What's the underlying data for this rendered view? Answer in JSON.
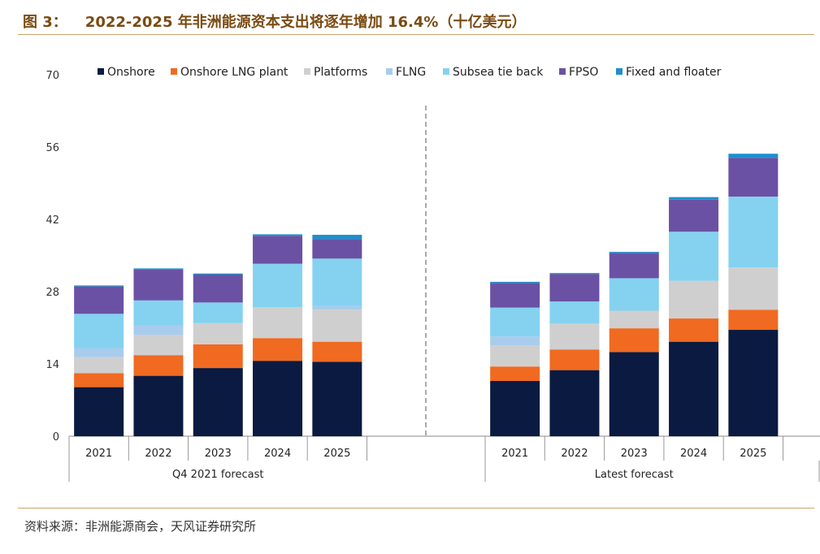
{
  "figure": {
    "label": "图 3：",
    "title": "2022-2025 年非洲能源资本支出将逐年增加 16.4%（十亿美元）",
    "source": "资料来源：非洲能源商会，天风证券研究所"
  },
  "colors": {
    "Onshore": "#0b1a40",
    "Onshore LNG plant": "#f06a21",
    "Platforms": "#cfcfcf",
    "FLNG": "#a9ccec",
    "Subsea tie back": "#84d2ef",
    "FPSO": "#6b51a3",
    "Fixed and floater": "#1c8fcd"
  },
  "chart_data": {
    "type": "bar",
    "stacked": true,
    "title": "",
    "xlabel": "",
    "ylabel": "",
    "ylim": [
      0,
      70
    ],
    "yticks": [
      0,
      14,
      28,
      42,
      56,
      70
    ],
    "legend_position": "top",
    "groups": [
      {
        "name": "Q4 2021 forecast",
        "categories": [
          "2021",
          "2022",
          "2023",
          "2024",
          "2025"
        ]
      },
      {
        "name": "Latest forecast",
        "categories": [
          "2021",
          "2022",
          "2023",
          "2024",
          "2025"
        ]
      }
    ],
    "categories": [
      "2021",
      "2022",
      "2023",
      "2024",
      "2025",
      "2021",
      "2022",
      "2023",
      "2024",
      "2025"
    ],
    "series": [
      {
        "name": "Onshore",
        "values": [
          9.5,
          11.7,
          13.2,
          14.6,
          14.4,
          10.7,
          12.8,
          16.3,
          18.3,
          20.6
        ]
      },
      {
        "name": "Onshore LNG plant",
        "values": [
          2.7,
          4.0,
          4.6,
          4.4,
          3.9,
          2.8,
          4.0,
          4.6,
          4.5,
          3.9
        ]
      },
      {
        "name": "Platforms",
        "values": [
          3.1,
          3.9,
          4.1,
          6.0,
          6.2,
          4.1,
          5.0,
          3.4,
          7.3,
          8.2
        ]
      },
      {
        "name": "FLNG",
        "values": [
          1.7,
          1.8,
          0.0,
          0.0,
          0.7,
          1.7,
          0.0,
          0.0,
          0.0,
          0.0
        ]
      },
      {
        "name": "Subsea tie back",
        "values": [
          6.7,
          4.9,
          4.0,
          8.4,
          9.2,
          5.6,
          4.3,
          6.3,
          9.5,
          13.7
        ]
      },
      {
        "name": "FPSO",
        "values": [
          5.3,
          6.0,
          5.4,
          5.4,
          3.8,
          4.8,
          5.3,
          4.9,
          6.2,
          7.5
        ]
      },
      {
        "name": "Fixed and floater",
        "values": [
          0.2,
          0.2,
          0.2,
          0.3,
          0.8,
          0.2,
          0.2,
          0.2,
          0.5,
          0.8
        ]
      }
    ]
  }
}
